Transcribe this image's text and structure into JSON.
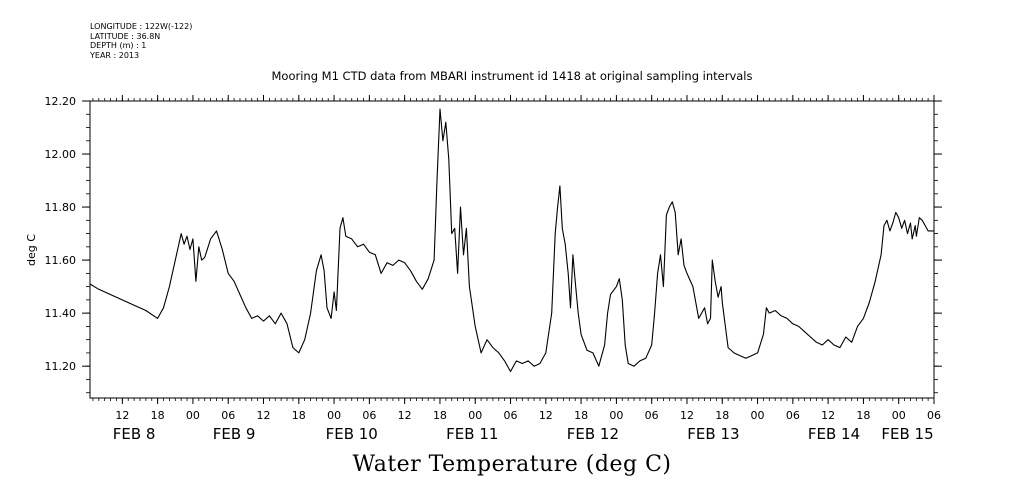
{
  "metadata": {
    "lines": [
      "LONGITUDE : 122W(-122)",
      "LATITUDE : 36.8N",
      "DEPTH (m) : 1",
      "YEAR : 2013"
    ]
  },
  "chart_data": {
    "type": "line",
    "title": "Mooring M1 CTD data from MBARI instrument id 1418 at original sampling intervals",
    "xlabel": "Water Temperature (deg C)",
    "ylabel": "deg C",
    "ylim": [
      11.08,
      12.2
    ],
    "yticks": [
      11.2,
      11.4,
      11.6,
      11.8,
      12.0,
      12.2
    ],
    "ytick_labels": [
      "11.20",
      "11.40",
      "11.60",
      "11.80",
      "12.00",
      "12.20"
    ],
    "xlim_hours_from_feb7_00": [
      30.5,
      174
    ],
    "hour_ticks": [
      {
        "t": 36,
        "label": "12"
      },
      {
        "t": 42,
        "label": "18"
      },
      {
        "t": 48,
        "label": "00"
      },
      {
        "t": 54,
        "label": "06"
      },
      {
        "t": 60,
        "label": "12"
      },
      {
        "t": 66,
        "label": "18"
      },
      {
        "t": 72,
        "label": "00"
      },
      {
        "t": 78,
        "label": "06"
      },
      {
        "t": 84,
        "label": "12"
      },
      {
        "t": 90,
        "label": "18"
      },
      {
        "t": 96,
        "label": "00"
      },
      {
        "t": 102,
        "label": "06"
      },
      {
        "t": 108,
        "label": "12"
      },
      {
        "t": 114,
        "label": "18"
      },
      {
        "t": 120,
        "label": "00"
      },
      {
        "t": 126,
        "label": "06"
      },
      {
        "t": 132,
        "label": "12"
      },
      {
        "t": 138,
        "label": "18"
      },
      {
        "t": 144,
        "label": "00"
      },
      {
        "t": 150,
        "label": "06"
      },
      {
        "t": 156,
        "label": "12"
      },
      {
        "t": 162,
        "label": "18"
      },
      {
        "t": 168,
        "label": "00"
      },
      {
        "t": 174,
        "label": "06"
      }
    ],
    "day_labels": [
      {
        "t": 38,
        "label": "FEB  8"
      },
      {
        "t": 55,
        "label": "FEB  9"
      },
      {
        "t": 75,
        "label": "FEB 10"
      },
      {
        "t": 95.5,
        "label": "FEB 11"
      },
      {
        "t": 116,
        "label": "FEB 12"
      },
      {
        "t": 136.5,
        "label": "FEB 13"
      },
      {
        "t": 157,
        "label": "FEB 14"
      },
      {
        "t": 169.5,
        "label": "FEB 15"
      }
    ],
    "series": [
      {
        "values": [
          [
            30.5,
            11.51
          ],
          [
            32,
            11.49
          ],
          [
            34,
            11.47
          ],
          [
            36,
            11.45
          ],
          [
            38,
            11.43
          ],
          [
            40,
            11.41
          ],
          [
            42,
            11.38
          ],
          [
            43,
            11.42
          ],
          [
            44,
            11.5
          ],
          [
            45,
            11.6
          ],
          [
            46,
            11.7
          ],
          [
            46.5,
            11.66
          ],
          [
            47,
            11.69
          ],
          [
            47.5,
            11.64
          ],
          [
            48,
            11.68
          ],
          [
            48.5,
            11.52
          ],
          [
            49,
            11.65
          ],
          [
            49.5,
            11.6
          ],
          [
            50,
            11.61
          ],
          [
            51,
            11.68
          ],
          [
            52,
            11.71
          ],
          [
            53,
            11.64
          ],
          [
            54,
            11.55
          ],
          [
            55,
            11.52
          ],
          [
            56,
            11.47
          ],
          [
            57,
            11.42
          ],
          [
            58,
            11.38
          ],
          [
            59,
            11.39
          ],
          [
            60,
            11.37
          ],
          [
            61,
            11.39
          ],
          [
            62,
            11.36
          ],
          [
            63,
            11.4
          ],
          [
            64,
            11.36
          ],
          [
            65,
            11.27
          ],
          [
            66,
            11.25
          ],
          [
            67,
            11.3
          ],
          [
            68,
            11.4
          ],
          [
            69,
            11.56
          ],
          [
            69.8,
            11.62
          ],
          [
            70.3,
            11.56
          ],
          [
            70.8,
            11.42
          ],
          [
            71.5,
            11.38
          ],
          [
            72,
            11.48
          ],
          [
            72.4,
            11.41
          ],
          [
            73,
            11.72
          ],
          [
            73.5,
            11.76
          ],
          [
            74,
            11.69
          ],
          [
            75,
            11.68
          ],
          [
            76,
            11.65
          ],
          [
            77,
            11.66
          ],
          [
            78,
            11.63
          ],
          [
            79,
            11.62
          ],
          [
            80,
            11.55
          ],
          [
            81,
            11.59
          ],
          [
            82,
            11.58
          ],
          [
            83,
            11.6
          ],
          [
            84,
            11.59
          ],
          [
            85,
            11.56
          ],
          [
            86,
            11.52
          ],
          [
            87,
            11.49
          ],
          [
            88,
            11.53
          ],
          [
            89,
            11.6
          ],
          [
            89.5,
            11.9
          ],
          [
            90,
            12.17
          ],
          [
            90.5,
            12.05
          ],
          [
            91,
            12.12
          ],
          [
            91.5,
            11.98
          ],
          [
            92,
            11.7
          ],
          [
            92.5,
            11.72
          ],
          [
            93,
            11.55
          ],
          [
            93.5,
            11.8
          ],
          [
            94,
            11.62
          ],
          [
            94.5,
            11.72
          ],
          [
            95,
            11.5
          ],
          [
            96,
            11.35
          ],
          [
            97,
            11.25
          ],
          [
            98,
            11.3
          ],
          [
            99,
            11.27
          ],
          [
            100,
            11.25
          ],
          [
            101,
            11.22
          ],
          [
            102,
            11.18
          ],
          [
            103,
            11.22
          ],
          [
            104,
            11.21
          ],
          [
            105,
            11.22
          ],
          [
            106,
            11.2
          ],
          [
            107,
            11.21
          ],
          [
            108,
            11.25
          ],
          [
            109,
            11.4
          ],
          [
            109.6,
            11.7
          ],
          [
            110,
            11.8
          ],
          [
            110.4,
            11.88
          ],
          [
            110.8,
            11.72
          ],
          [
            111.3,
            11.66
          ],
          [
            111.8,
            11.55
          ],
          [
            112.2,
            11.42
          ],
          [
            112.6,
            11.62
          ],
          [
            113,
            11.52
          ],
          [
            113.5,
            11.4
          ],
          [
            114,
            11.32
          ],
          [
            115,
            11.26
          ],
          [
            116,
            11.25
          ],
          [
            117,
            11.2
          ],
          [
            118,
            11.28
          ],
          [
            118.5,
            11.4
          ],
          [
            119,
            11.47
          ],
          [
            120,
            11.5
          ],
          [
            120.5,
            11.53
          ],
          [
            121,
            11.45
          ],
          [
            121.5,
            11.28
          ],
          [
            122,
            11.21
          ],
          [
            123,
            11.2
          ],
          [
            124,
            11.22
          ],
          [
            125,
            11.23
          ],
          [
            126,
            11.28
          ],
          [
            126.5,
            11.4
          ],
          [
            127,
            11.55
          ],
          [
            127.5,
            11.62
          ],
          [
            128,
            11.5
          ],
          [
            128.5,
            11.77
          ],
          [
            129,
            11.8
          ],
          [
            129.5,
            11.82
          ],
          [
            130,
            11.78
          ],
          [
            130.5,
            11.62
          ],
          [
            131,
            11.68
          ],
          [
            131.5,
            11.58
          ],
          [
            132,
            11.55
          ],
          [
            133,
            11.5
          ],
          [
            134,
            11.38
          ],
          [
            135,
            11.42
          ],
          [
            135.5,
            11.36
          ],
          [
            136,
            11.38
          ],
          [
            136.3,
            11.6
          ],
          [
            136.8,
            11.52
          ],
          [
            137.3,
            11.46
          ],
          [
            137.8,
            11.5
          ],
          [
            138,
            11.44
          ],
          [
            139,
            11.27
          ],
          [
            140,
            11.25
          ],
          [
            141,
            11.24
          ],
          [
            142,
            11.23
          ],
          [
            143,
            11.24
          ],
          [
            144,
            11.25
          ],
          [
            145,
            11.32
          ],
          [
            145.5,
            11.42
          ],
          [
            146,
            11.4
          ],
          [
            147,
            11.41
          ],
          [
            148,
            11.39
          ],
          [
            149,
            11.38
          ],
          [
            150,
            11.36
          ],
          [
            151,
            11.35
          ],
          [
            152,
            11.33
          ],
          [
            153,
            11.31
          ],
          [
            154,
            11.29
          ],
          [
            155,
            11.28
          ],
          [
            156,
            11.3
          ],
          [
            157,
            11.28
          ],
          [
            158,
            11.27
          ],
          [
            159,
            11.31
          ],
          [
            160,
            11.29
          ],
          [
            161,
            11.35
          ],
          [
            162,
            11.38
          ],
          [
            163,
            11.44
          ],
          [
            164,
            11.52
          ],
          [
            165,
            11.62
          ],
          [
            165.5,
            11.73
          ],
          [
            166,
            11.75
          ],
          [
            166.5,
            11.71
          ],
          [
            167,
            11.74
          ],
          [
            167.5,
            11.78
          ],
          [
            168,
            11.76
          ],
          [
            168.5,
            11.72
          ],
          [
            169,
            11.75
          ],
          [
            169.5,
            11.7
          ],
          [
            170,
            11.74
          ],
          [
            170.3,
            11.68
          ],
          [
            170.8,
            11.73
          ],
          [
            171,
            11.69
          ],
          [
            171.5,
            11.76
          ],
          [
            172,
            11.75
          ],
          [
            172.5,
            11.73
          ],
          [
            173,
            11.71
          ],
          [
            174,
            11.71
          ]
        ]
      }
    ]
  }
}
